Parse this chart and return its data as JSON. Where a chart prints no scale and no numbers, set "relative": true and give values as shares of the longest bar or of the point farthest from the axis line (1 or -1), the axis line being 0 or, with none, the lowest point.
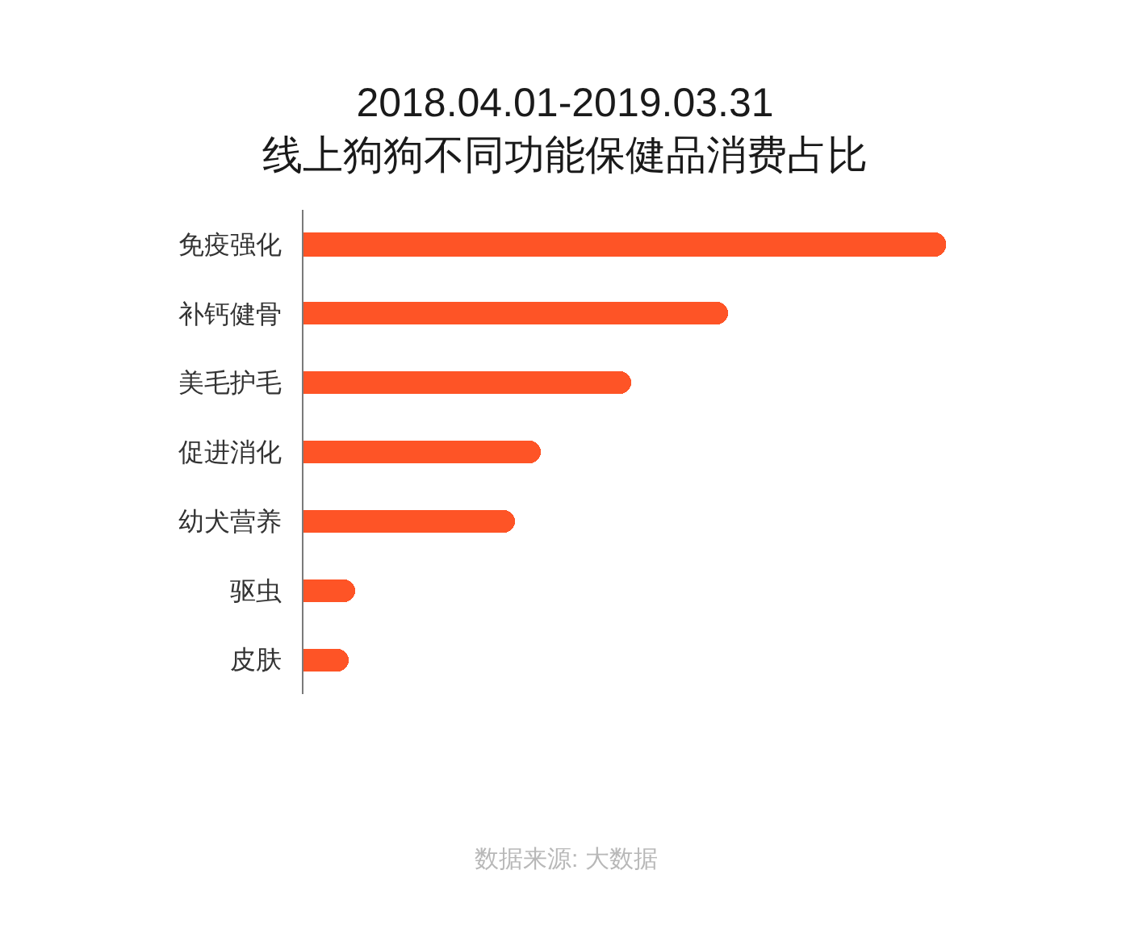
{
  "chart_data": {
    "type": "bar",
    "orientation": "horizontal",
    "relative": true,
    "title": "2018.04.01-2019.03.31\n线上狗狗不同功能保健品消费占比",
    "categories": [
      "免疫强化",
      "补钙健骨",
      "美毛护毛",
      "促进消化",
      "幼犬营养",
      "驱虫",
      "皮肤"
    ],
    "values": [
      1,
      0.66,
      0.51,
      0.37,
      0.33,
      0.08,
      0.07
    ],
    "color": "#fe5426",
    "annotations": [
      "数据来源: 大数据"
    ]
  }
}
